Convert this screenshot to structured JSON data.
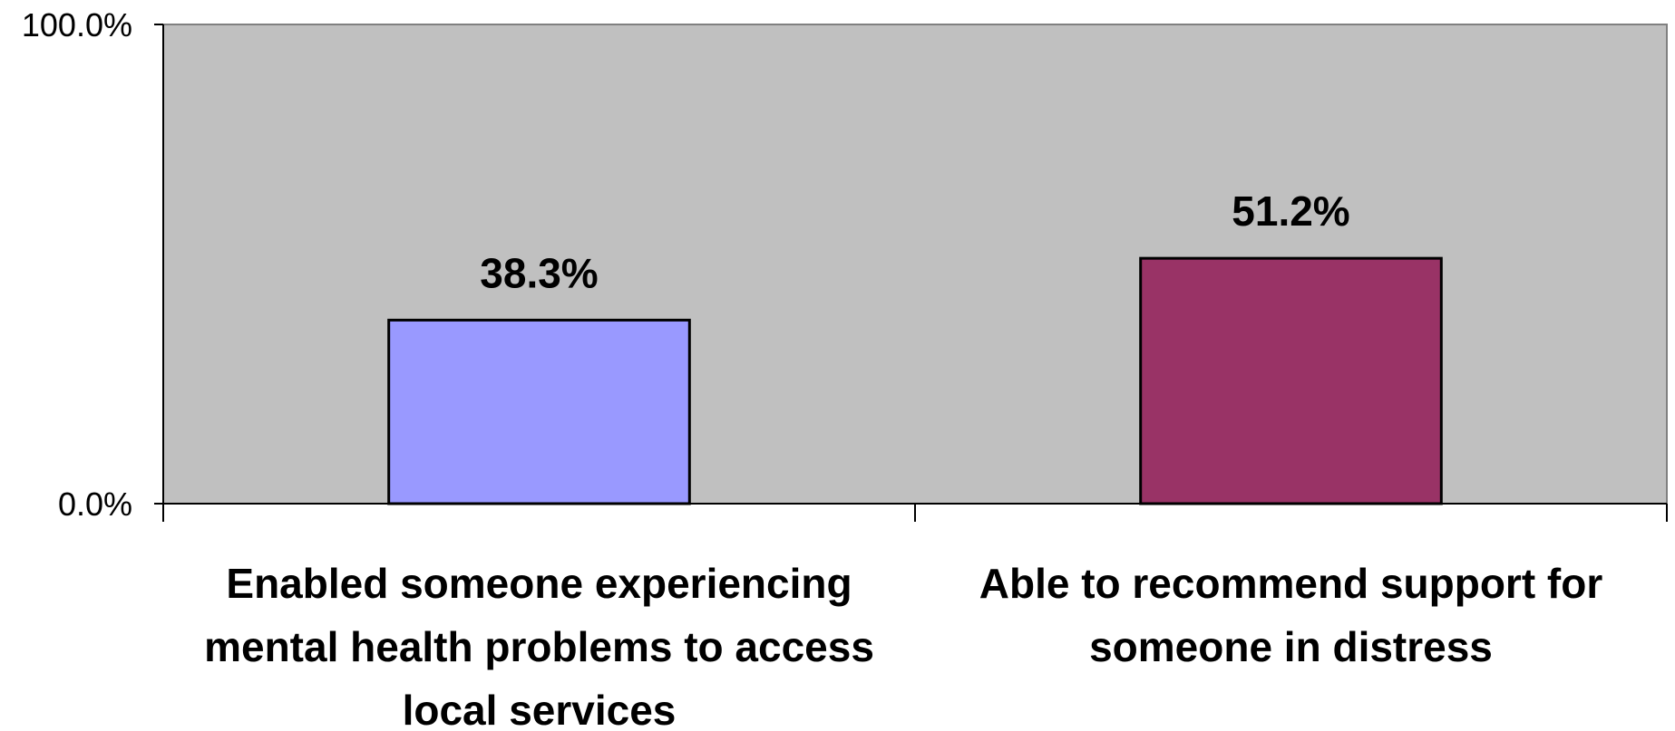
{
  "chart_data": {
    "type": "bar",
    "categories": [
      [
        "Enabled someone experiencing",
        "mental health problems to access",
        "local services"
      ],
      [
        "Able to recommend support for",
        "someone in distress"
      ]
    ],
    "values": [
      38.3,
      51.2
    ],
    "data_labels": [
      "38.3%",
      "51.2%"
    ],
    "ylim": [
      0,
      100
    ],
    "y_ticks": [
      {
        "value": 0,
        "label": "0.0%"
      },
      {
        "value": 100,
        "label": "100.0%"
      }
    ],
    "bar_colors": [
      "#9999FF",
      "#993366"
    ],
    "plot_background": "#C0C0C0",
    "grid": false,
    "legend": "none"
  }
}
